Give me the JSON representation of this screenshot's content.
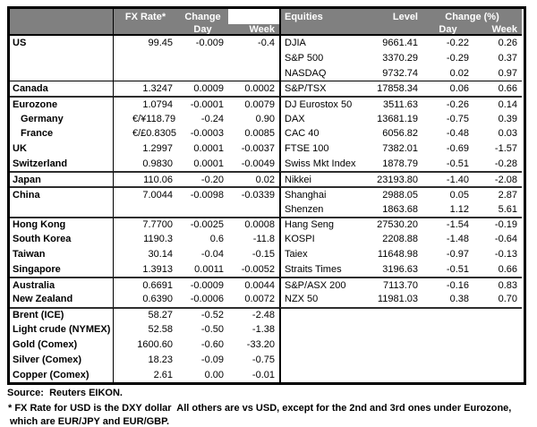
{
  "chart_data": [
    {
      "type": "table",
      "name": "fx-rates",
      "header_row1": [
        "",
        "FX Rate*",
        "Change",
        ""
      ],
      "header_row2": [
        "",
        "",
        "Day",
        "Week"
      ],
      "row_fields": [
        "region",
        "pair_symbol",
        "rate",
        "change_day",
        "change_week"
      ],
      "rows": [
        [
          "US",
          "",
          "99.45",
          "-0.009",
          "-0.4"
        ],
        [
          "",
          "",
          "",
          "",
          ""
        ],
        [
          "",
          "",
          "",
          "",
          ""
        ],
        [
          "Canada",
          "",
          "1.3247",
          "0.0009",
          "0.0002"
        ],
        [
          "Eurozone",
          "",
          "1.0794",
          "-0.0001",
          "0.0079"
        ],
        [
          "Germany",
          "€/¥",
          "118.79",
          "-0.24",
          "0.90"
        ],
        [
          "France",
          "€/£",
          "0.8305",
          "-0.0003",
          "0.0085"
        ],
        [
          "UK",
          "",
          "1.2997",
          "0.0001",
          "-0.0037"
        ],
        [
          "Switzerland",
          "",
          "0.9830",
          "0.0001",
          "-0.0049"
        ],
        [
          "Japan",
          "",
          "110.06",
          "-0.20",
          "0.02"
        ],
        [
          "China",
          "",
          "7.0044",
          "-0.0098",
          "-0.0339"
        ],
        [
          "",
          "",
          "",
          "",
          ""
        ],
        [
          "Hong Kong",
          "",
          "7.7700",
          "-0.0025",
          "0.0008"
        ],
        [
          "South Korea",
          "",
          "1190.3",
          "0.6",
          "-11.8"
        ],
        [
          "Taiwan",
          "",
          "30.14",
          "-0.04",
          "-0.15"
        ],
        [
          "Singapore",
          "",
          "1.3913",
          "0.0011",
          "-0.0052"
        ],
        [
          "Australia",
          "",
          "0.6691",
          "-0.0009",
          "0.0044"
        ],
        [
          "New Zealand",
          "",
          "0.6390",
          "-0.0006",
          "0.0072"
        ],
        [
          "Brent (ICE)",
          "",
          "58.27",
          "-0.52",
          "-2.48"
        ],
        [
          "Light crude (NYMEX)",
          "",
          "52.58",
          "-0.50",
          "-1.38"
        ],
        [
          "Gold (Comex)",
          "",
          "1600.60",
          "-0.60",
          "-33.20"
        ],
        [
          "Silver (Comex)",
          "",
          "18.23",
          "-0.09",
          "-0.75"
        ],
        [
          "Copper (Comex)",
          "",
          "2.61",
          "0.00",
          "-0.01"
        ]
      ]
    },
    {
      "type": "table",
      "name": "equities",
      "header_row1": [
        "Equities",
        "Level",
        "Change (%)"
      ],
      "header_row2": [
        "",
        "",
        "Day",
        "Week"
      ],
      "row_fields": [
        "index_name",
        "level",
        "change_day_pct",
        "change_week_pct"
      ],
      "rows": [
        [
          "DJIA",
          "9661.41",
          "-0.22",
          "0.26"
        ],
        [
          "S&P 500",
          "3370.29",
          "-0.29",
          "0.37"
        ],
        [
          "NASDAQ",
          "9732.74",
          "0.02",
          "0.97"
        ],
        [
          "S&P/TSX",
          "17858.34",
          "0.06",
          "0.66"
        ],
        [
          "DJ Eurostox 50",
          "3511.63",
          "-0.26",
          "0.14"
        ],
        [
          "DAX",
          "13681.19",
          "-0.75",
          "0.39"
        ],
        [
          "CAC 40",
          "6056.82",
          "-0.48",
          "0.03"
        ],
        [
          "FTSE 100",
          "7382.01",
          "-0.69",
          "-1.57"
        ],
        [
          "Swiss Mkt Index",
          "1878.79",
          "-0.51",
          "-0.28"
        ],
        [
          "Nikkei",
          "23193.80",
          "-1.40",
          "-2.08"
        ],
        [
          "Shanghai",
          "2988.05",
          "0.05",
          "2.87"
        ],
        [
          "Shenzen",
          "1863.68",
          "1.12",
          "5.61"
        ],
        [
          "Hang Seng",
          "27530.20",
          "-1.54",
          "-0.19"
        ],
        [
          "KOSPI",
          "2208.88",
          "-1.48",
          "-0.64"
        ],
        [
          "Taiex",
          "11648.98",
          "-0.97",
          "-0.13"
        ],
        [
          "Straits Times",
          "3196.63",
          "-0.51",
          "0.66"
        ],
        [
          "S&P/ASX 200",
          "7113.70",
          "-0.16",
          "0.83"
        ],
        [
          "NZX 50",
          "11981.03",
          "0.38",
          "0.70"
        ],
        [
          "",
          "",
          "",
          ""
        ],
        [
          "",
          "",
          "",
          ""
        ],
        [
          "",
          "",
          "",
          ""
        ],
        [
          "",
          "",
          "",
          ""
        ],
        [
          "",
          "",
          "",
          ""
        ]
      ]
    }
  ],
  "layout": {
    "separators": {
      "thin": [
        3
      ],
      "thick": [
        4,
        9,
        10,
        12,
        16,
        18
      ]
    },
    "indent_rows": [
      5,
      6
    ]
  },
  "footer": {
    "source": "Source:  Reuters EIKON.",
    "note1": "* FX Rate for USD is the DXY dollar  All others are vs USD, except for the 2nd and 3rd ones under Eurozone,",
    "note2": "which are EUR/JPY and EUR/GBP."
  },
  "colors": {
    "header_bg": "#808080",
    "header_text": "#ffffff",
    "border": "#000000",
    "group_separator": "#2e2e2e",
    "body_text": "#000000"
  }
}
